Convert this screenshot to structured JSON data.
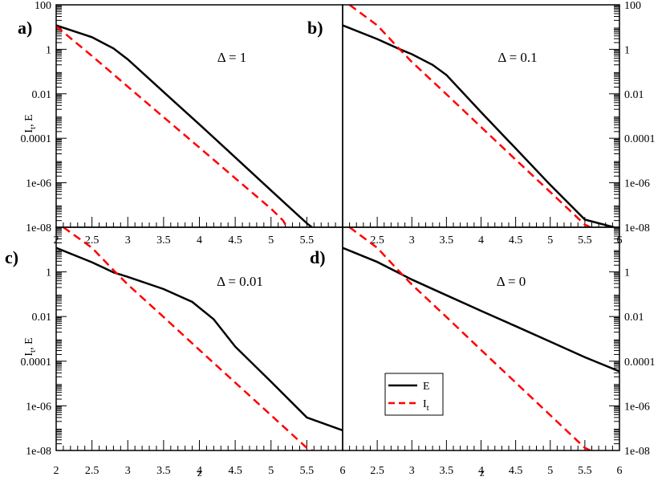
{
  "chart_data": [
    {
      "type": "line",
      "panel_label": "a)",
      "annotation": "Δ = 1",
      "ylabel": "I_t, E",
      "xlabel": "",
      "xlim": [
        2,
        6
      ],
      "ylim": [
        1e-08,
        100
      ],
      "yscale": "log",
      "x_ticks": [
        "2",
        "2.5",
        "3",
        "3.5",
        "4",
        "4.5",
        "5",
        "5.5"
      ],
      "y_ticks": [
        "1e-08",
        "1e-06",
        "0.0001",
        "0.01",
        "1",
        "100"
      ],
      "series": [
        {
          "name": "E",
          "color": "#000000",
          "dash": "solid",
          "points": [
            [
              2.0,
              12
            ],
            [
              2.5,
              3.5
            ],
            [
              2.8,
              1.1
            ],
            [
              3.0,
              0.35
            ],
            [
              3.5,
              0.012
            ],
            [
              4.0,
              0.00042
            ],
            [
              4.5,
              1.4e-05
            ],
            [
              5.0,
              4.5e-07
            ],
            [
              5.5,
              1.5e-08
            ],
            [
              5.57,
              1e-08
            ]
          ]
        },
        {
          "name": "I_t",
          "color": "#ff0000",
          "dash": "dashed",
          "points": [
            [
              2.0,
              11
            ],
            [
              2.5,
              0.5
            ],
            [
              3.0,
              0.021
            ],
            [
              3.5,
              0.00089
            ],
            [
              4.0,
              3.8e-05
            ],
            [
              4.5,
              1.6e-06
            ],
            [
              5.0,
              6.8e-08
            ],
            [
              5.17,
              2e-08
            ],
            [
              5.22,
              1e-08
            ]
          ]
        }
      ]
    },
    {
      "type": "line",
      "panel_label": "b)",
      "annotation": "Δ = 0.1",
      "ylabel": "",
      "xlabel": "",
      "xlim": [
        2,
        6
      ],
      "ylim": [
        1e-08,
        100
      ],
      "yscale": "log",
      "x_ticks": [
        "2.5",
        "3",
        "3.5",
        "4",
        "4.5",
        "5",
        "5.5",
        "6"
      ],
      "y_ticks": [
        "1e-08",
        "1e-06",
        "0.0001",
        "0.01",
        "1",
        "100"
      ],
      "series": [
        {
          "name": "E",
          "color": "#000000",
          "dash": "solid",
          "points": [
            [
              2.0,
              12
            ],
            [
              2.5,
              2.9
            ],
            [
              2.8,
              1.1
            ],
            [
              3.0,
              0.6
            ],
            [
              3.3,
              0.2
            ],
            [
              3.5,
              0.07
            ],
            [
              4.0,
              0.0015
            ],
            [
              4.5,
              3.5e-05
            ],
            [
              5.0,
              8e-07
            ],
            [
              5.5,
              2.2e-08
            ],
            [
              5.92,
              1e-08
            ]
          ]
        },
        {
          "name": "I_t",
          "color": "#ff0000",
          "dash": "dashed",
          "points": [
            [
              2.1,
              100
            ],
            [
              2.5,
              12
            ],
            [
              2.8,
              1.2
            ],
            [
              3.0,
              0.27
            ],
            [
              3.5,
              0.0095
            ],
            [
              4.0,
              0.00032
            ],
            [
              4.5,
              1.1e-05
            ],
            [
              5.0,
              3.8e-07
            ],
            [
              5.5,
              1.3e-08
            ],
            [
              5.58,
              1e-08
            ]
          ]
        }
      ]
    },
    {
      "type": "line",
      "panel_label": "c)",
      "annotation": "Δ = 0.01",
      "ylabel": "I_t, E",
      "xlabel": "z",
      "xlim": [
        2,
        6
      ],
      "ylim": [
        1e-08,
        100
      ],
      "yscale": "log",
      "x_ticks": [
        "2",
        "2.5",
        "3",
        "3.5",
        "4",
        "4.5",
        "5",
        "5.5",
        "6"
      ],
      "y_ticks": [
        "1e-08",
        "1e-06",
        "0.0001",
        "0.01",
        "1"
      ],
      "series": [
        {
          "name": "E",
          "color": "#000000",
          "dash": "solid",
          "points": [
            [
              2.0,
              12
            ],
            [
              2.5,
              2.7
            ],
            [
              2.8,
              0.95
            ],
            [
              3.0,
              0.6
            ],
            [
              3.5,
              0.17
            ],
            [
              3.9,
              0.045
            ],
            [
              4.2,
              0.0075
            ],
            [
              4.5,
              0.00045
            ],
            [
              5.0,
              1.2e-05
            ],
            [
              5.5,
              3e-07
            ],
            [
              6.0,
              8e-08
            ]
          ]
        },
        {
          "name": "I_t",
          "color": "#ff0000",
          "dash": "dashed",
          "points": [
            [
              2.1,
              100
            ],
            [
              2.5,
              12
            ],
            [
              2.8,
              1.2
            ],
            [
              3.0,
              0.27
            ],
            [
              3.5,
              0.0095
            ],
            [
              4.0,
              0.00032
            ],
            [
              4.5,
              1.1e-05
            ],
            [
              5.0,
              3.8e-07
            ],
            [
              5.5,
              1.3e-08
            ],
            [
              5.58,
              1e-08
            ]
          ]
        }
      ]
    },
    {
      "type": "line",
      "panel_label": "d)",
      "annotation": "Δ = 0",
      "ylabel": "",
      "xlabel": "z",
      "xlim": [
        2,
        6
      ],
      "ylim": [
        1e-08,
        100
      ],
      "yscale": "log",
      "x_ticks": [
        "2.5",
        "3",
        "3.5",
        "4",
        "4.5",
        "5",
        "5.5",
        "6"
      ],
      "y_ticks": [
        "1e-08",
        "1e-06",
        "0.0001",
        "0.01",
        "1"
      ],
      "series": [
        {
          "name": "E",
          "color": "#000000",
          "dash": "solid",
          "points": [
            [
              2.0,
              12
            ],
            [
              2.5,
              2.8
            ],
            [
              3.0,
              0.45
            ],
            [
              3.5,
              0.09
            ],
            [
              4.0,
              0.018
            ],
            [
              4.5,
              0.0037
            ],
            [
              5.0,
              0.00075
            ],
            [
              5.5,
              0.00015
            ],
            [
              6.0,
              3.5e-05
            ]
          ]
        },
        {
          "name": "I_t",
          "color": "#ff0000",
          "dash": "dashed",
          "points": [
            [
              2.1,
              100
            ],
            [
              2.5,
              12
            ],
            [
              2.8,
              1.2
            ],
            [
              3.0,
              0.27
            ],
            [
              3.5,
              0.0095
            ],
            [
              4.0,
              0.00032
            ],
            [
              4.5,
              1.1e-05
            ],
            [
              5.0,
              3.8e-07
            ],
            [
              5.5,
              1.3e-08
            ],
            [
              5.58,
              1e-08
            ]
          ]
        }
      ]
    }
  ],
  "legend": {
    "panel": 3,
    "placement": "lower-left",
    "entries": [
      {
        "label": "E",
        "color": "#000000",
        "dash": "solid"
      },
      {
        "label": "I_t",
        "color": "#ff0000",
        "dash": "dashed"
      }
    ]
  }
}
